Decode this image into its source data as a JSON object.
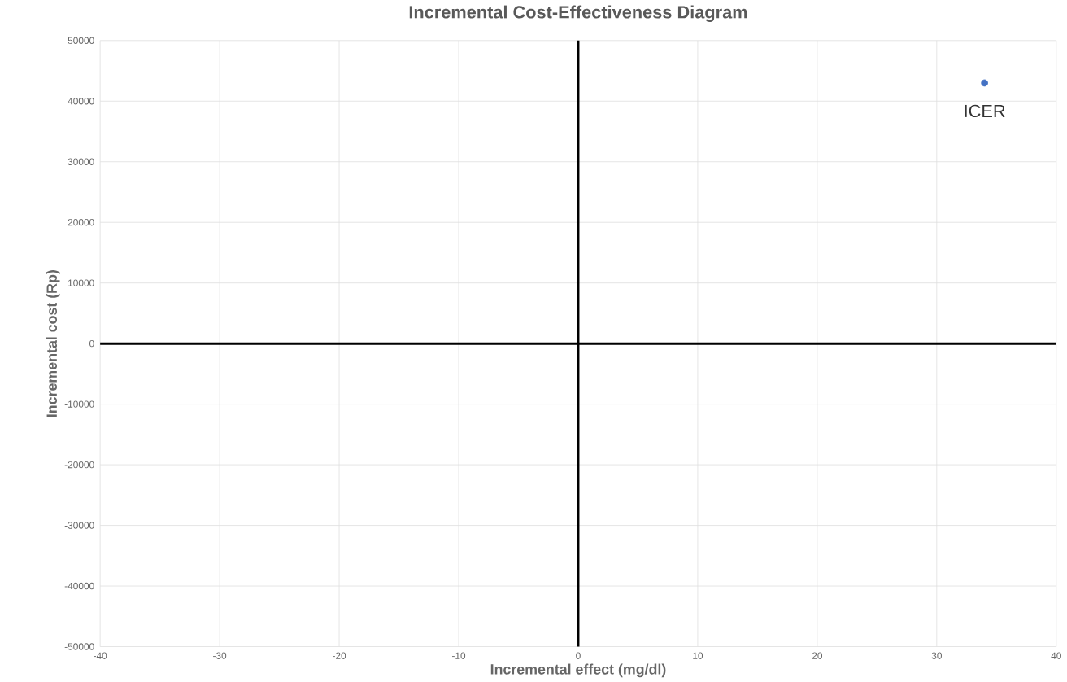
{
  "chart_data": {
    "type": "scatter",
    "title": "Incremental Cost-Effectiveness Diagram",
    "xlabel": "Incremental effect (mg/dl)",
    "ylabel": "Incremental cost (Rp)",
    "x": [
      34
    ],
    "values": [
      43000
    ],
    "color": "#4472c4",
    "xlim": [
      -40,
      40
    ],
    "xticks": [
      -40,
      -30,
      -20,
      -10,
      0,
      10,
      20,
      30,
      40
    ],
    "ylim": [
      -50000,
      50000
    ],
    "yticks": [
      -50000,
      -40000,
      -30000,
      -20000,
      -10000,
      0,
      10000,
      20000,
      30000,
      40000,
      50000
    ],
    "grid": true,
    "annotations": [
      {
        "text": "ICER",
        "x": 34,
        "y": 43000
      }
    ]
  }
}
